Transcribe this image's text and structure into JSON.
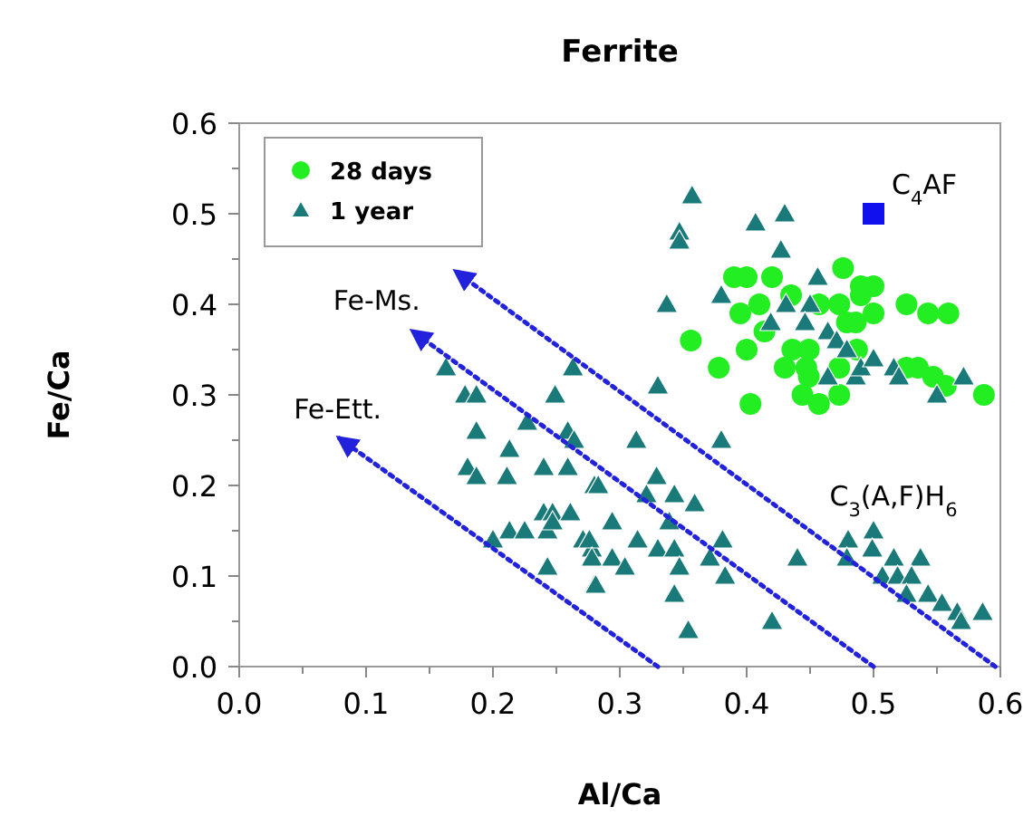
{
  "chart_data": {
    "type": "scatter",
    "title": "Ferrite",
    "xlabel": "Al/Ca",
    "ylabel": "Fe/Ca",
    "xlim": [
      0,
      0.6
    ],
    "ylim": [
      0,
      0.6
    ],
    "xticks": [
      {
        "value": 0,
        "label": "0.0"
      },
      {
        "value": 0.05,
        "label": null
      },
      {
        "value": 0.1,
        "label": "0.1"
      },
      {
        "value": 0.15,
        "label": null
      },
      {
        "value": 0.2,
        "label": "0.2"
      },
      {
        "value": 0.25,
        "label": null
      },
      {
        "value": 0.3,
        "label": "0.3"
      },
      {
        "value": 0.35,
        "label": null
      },
      {
        "value": 0.4,
        "label": "0.4"
      },
      {
        "value": 0.45,
        "label": null
      },
      {
        "value": 0.5,
        "label": "0.5"
      },
      {
        "value": 0.55,
        "label": null
      },
      {
        "value": 0.6,
        "label": "0.6"
      }
    ],
    "yticks": [
      {
        "value": 0,
        "label": "0.0"
      },
      {
        "value": 0.05,
        "label": null
      },
      {
        "value": 0.1,
        "label": "0.1"
      },
      {
        "value": 0.15,
        "label": null
      },
      {
        "value": 0.2,
        "label": "0.2"
      },
      {
        "value": 0.25,
        "label": null
      },
      {
        "value": 0.3,
        "label": "0.3"
      },
      {
        "value": 0.35,
        "label": null
      },
      {
        "value": 0.4,
        "label": "0.4"
      },
      {
        "value": 0.45,
        "label": null
      },
      {
        "value": 0.5,
        "label": "0.5"
      },
      {
        "value": 0.55,
        "label": null
      },
      {
        "value": 0.6,
        "label": "0.6"
      }
    ],
    "grid": false,
    "legend": "top left",
    "series": [
      {
        "name": "28 days",
        "color": "#22ee22",
        "marker": "circle",
        "x": [
          0.476,
          0.39,
          0.4,
          0.42,
          0.41,
          0.435,
          0.49,
          0.5,
          0.395,
          0.473,
          0.457,
          0.49,
          0.526,
          0.543,
          0.559,
          0.486,
          0.5,
          0.479,
          0.356,
          0.414,
          0.4,
          0.436,
          0.449,
          0.378,
          0.43,
          0.447,
          0.449,
          0.473,
          0.487,
          0.526,
          0.535,
          0.547,
          0.557,
          0.587,
          0.444,
          0.457,
          0.473,
          0.403
        ],
        "values": [
          0.44,
          0.43,
          0.43,
          0.43,
          0.4,
          0.41,
          0.42,
          0.42,
          0.39,
          0.4,
          0.4,
          0.41,
          0.4,
          0.39,
          0.39,
          0.38,
          0.39,
          0.38,
          0.36,
          0.37,
          0.35,
          0.35,
          0.35,
          0.33,
          0.33,
          0.33,
          0.32,
          0.33,
          0.35,
          0.33,
          0.33,
          0.32,
          0.31,
          0.3,
          0.3,
          0.29,
          0.3,
          0.29
        ]
      },
      {
        "name": "1 year",
        "color": "#1a7a7a",
        "marker": "triangle",
        "x": [
          0.357,
          0.347,
          0.347,
          0.407,
          0.43,
          0.427,
          0.337,
          0.38,
          0.456,
          0.431,
          0.45,
          0.419,
          0.446,
          0.464,
          0.471,
          0.479,
          0.464,
          0.486,
          0.49,
          0.5,
          0.516,
          0.52,
          0.55,
          0.571,
          0.33,
          0.163,
          0.178,
          0.187,
          0.249,
          0.263,
          0.187,
          0.227,
          0.259,
          0.264,
          0.213,
          0.18,
          0.187,
          0.211,
          0.24,
          0.259,
          0.28,
          0.24,
          0.247,
          0.261,
          0.213,
          0.225,
          0.243,
          0.247,
          0.271,
          0.278,
          0.2,
          0.243,
          0.28,
          0.313,
          0.38,
          0.283,
          0.329,
          0.343,
          0.321,
          0.359,
          0.339,
          0.294,
          0.314,
          0.33,
          0.343,
          0.381,
          0.276,
          0.278,
          0.294,
          0.304,
          0.347,
          0.371,
          0.383,
          0.281,
          0.343,
          0.354,
          0.42,
          0.44,
          0.48,
          0.5,
          0.499,
          0.479,
          0.516,
          0.537,
          0.507,
          0.519,
          0.53,
          0.526,
          0.543,
          0.554,
          0.566,
          0.569,
          0.586
        ],
        "values": [
          0.52,
          0.48,
          0.47,
          0.49,
          0.5,
          0.46,
          0.4,
          0.41,
          0.43,
          0.4,
          0.4,
          0.38,
          0.38,
          0.37,
          0.36,
          0.35,
          0.32,
          0.32,
          0.33,
          0.34,
          0.33,
          0.32,
          0.3,
          0.32,
          0.31,
          0.33,
          0.3,
          0.3,
          0.3,
          0.33,
          0.26,
          0.27,
          0.26,
          0.25,
          0.24,
          0.22,
          0.21,
          0.21,
          0.22,
          0.22,
          0.2,
          0.17,
          0.17,
          0.17,
          0.15,
          0.15,
          0.15,
          0.16,
          0.14,
          0.13,
          0.14,
          0.11,
          0.09,
          0.25,
          0.25,
          0.2,
          0.21,
          0.19,
          0.19,
          0.18,
          0.16,
          0.16,
          0.14,
          0.13,
          0.13,
          0.14,
          0.14,
          0.12,
          0.12,
          0.11,
          0.11,
          0.12,
          0.1,
          0.09,
          0.08,
          0.04,
          0.05,
          0.12,
          0.14,
          0.15,
          0.13,
          0.12,
          0.12,
          0.12,
          0.1,
          0.1,
          0.1,
          0.08,
          0.08,
          0.07,
          0.06,
          0.05,
          0.06
        ]
      },
      {
        "color": "#1010ee",
        "marker": "square",
        "x": [
          0.5
        ],
        "values": [
          0.5
        ]
      },
      {
        "type": "line",
        "color": "#2222dd",
        "marker": "none",
        "line_style": "dotted",
        "x": [
          0.33,
          0.079
        ],
        "values": [
          0,
          0.252
        ]
      },
      {
        "type": "line",
        "color": "#2222dd",
        "marker": "none",
        "line_style": "dotted",
        "x": [
          0.5,
          0.137
        ],
        "values": [
          0,
          0.37
        ]
      },
      {
        "type": "line",
        "color": "#2222dd",
        "marker": "none",
        "line_style": "dotted",
        "x": [
          0.596,
          0.171
        ],
        "values": [
          0,
          0.436
        ]
      }
    ],
    "annotations": [
      {
        "text": "C$_{4}$AF",
        "x": 0.5,
        "y": 0.5
      },
      {
        "text": "Fe-Ms.",
        "x": 0.137,
        "y": 0.37
      },
      {
        "text": "Fe-Ett.",
        "x": 0.079,
        "y": 0.252
      },
      {
        "text": "C$_{3}$(A,F)H$_{6}$",
        "x": 0.45,
        "y": 0.15
      }
    ]
  }
}
